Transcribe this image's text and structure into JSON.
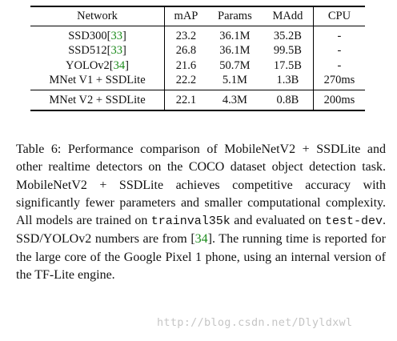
{
  "table": {
    "headers": [
      "Network",
      "mAP",
      "Params",
      "MAdd",
      "CPU"
    ],
    "rows": [
      {
        "network": "SSD300",
        "cite": "33",
        "map": "23.2",
        "params": "36.1M",
        "madd": "35.2B",
        "cpu": "-"
      },
      {
        "network": "SSD512",
        "cite": "33",
        "map": "26.8",
        "params": "36.1M",
        "madd": "99.5B",
        "cpu": "-"
      },
      {
        "network": "YOLOv2",
        "cite": "34",
        "map": "21.6",
        "params": "50.7M",
        "madd": "17.5B",
        "cpu": "-"
      },
      {
        "network": "MNet V1 + SSDLite",
        "cite": "",
        "map": "22.2",
        "params": "5.1M",
        "madd": "1.3B",
        "cpu": "270ms"
      },
      {
        "network": "MNet V2 + SSDLite",
        "cite": "",
        "map": "22.1",
        "params": "4.3M",
        "madd": "0.8B",
        "cpu": "200ms"
      }
    ]
  },
  "caption": {
    "part1": "Table 6: Performance comparison of MobileNetV2 + SSDLite and other realtime detectors on the COCO dataset object detection task. MobileNetV2 + SSDLite achieves competitive accuracy with significantly fewer parameters and smaller computational complexity. All models are trained on ",
    "code1": "trainval35k",
    "part2": " and evaluated on ",
    "code2": "test-dev",
    "part3": ". SSD/YOLOv2 numbers are from [",
    "cite": "34",
    "part4": "]. The running time is reported for the large core of the Google Pixel 1 phone, using an internal version of the TF-Lite engine."
  },
  "watermark": "http://blog.csdn.net/Dlyldxwl"
}
